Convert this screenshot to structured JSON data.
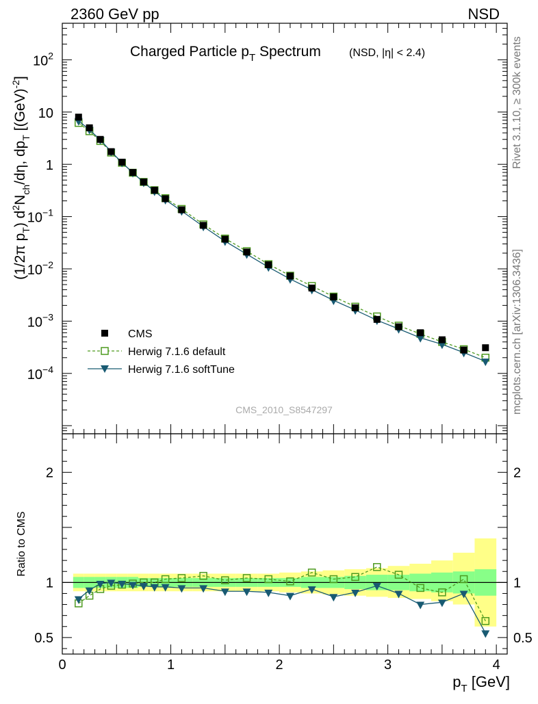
{
  "header": {
    "energy_label": "2360 GeV pp",
    "process_label": "NSD"
  },
  "side_labels": {
    "rivet": "Rivet 3.1.10, ≥ 300k events",
    "mcplots": "mcplots.cern.ch [arXiv:1306.3436]"
  },
  "analysis_id": "CMS_2010_S8547297",
  "colors": {
    "data": "#000000",
    "default": "#4d9a1f",
    "softtune": "#185a72",
    "band_yellow": "#ffff88",
    "band_green": "#88ff88"
  },
  "chart_data": [
    {
      "type": "line",
      "title_main": "Charged Particle p",
      "title_main_sub": "T",
      "title_main_end": " Spectrum",
      "title_extra": "(NSD, |η| < 2.4)",
      "ylabel": {
        "p1": "(1/2π p",
        "s1": "T",
        "p2": ") d",
        "s2": "2",
        "p3": "N",
        "s3": "ch",
        "p4": "/dη, dp",
        "s4": "T",
        "p5": " [(GeV)",
        "s5": "-2",
        "p6": "]"
      },
      "y_scale": "log",
      "ylim": [
        7e-06,
        500
      ],
      "xlim": [
        0,
        4.1
      ],
      "y_ticks": [
        {
          "v": 0.0001,
          "base": "10",
          "exp": "−4"
        },
        {
          "v": 0.001,
          "base": "10",
          "exp": "−3"
        },
        {
          "v": 0.01,
          "base": "10",
          "exp": "−2"
        },
        {
          "v": 0.1,
          "base": "10",
          "exp": "−1"
        },
        {
          "v": 1,
          "base": "1",
          "exp": ""
        },
        {
          "v": 10,
          "base": "10",
          "exp": ""
        },
        {
          "v": 100,
          "base": "10",
          "exp": "2"
        }
      ],
      "legend_position": "middle-left",
      "x": [
        0.15,
        0.25,
        0.35,
        0.45,
        0.55,
        0.65,
        0.75,
        0.85,
        0.95,
        1.1,
        1.3,
        1.5,
        1.7,
        1.9,
        2.1,
        2.3,
        2.5,
        2.7,
        2.9,
        3.1,
        3.3,
        3.5,
        3.7,
        3.9
      ],
      "series": [
        {
          "name": "CMS",
          "key": "data",
          "marker": "square",
          "values": [
            8.0,
            5.0,
            3.0,
            1.75,
            1.1,
            0.7,
            0.46,
            0.32,
            0.22,
            0.135,
            0.068,
            0.037,
            0.021,
            0.012,
            0.0073,
            0.0043,
            0.0029,
            0.0018,
            0.00108,
            0.00078,
            0.0006,
            0.00044,
            0.00028,
            0.00031
          ]
        },
        {
          "name": "Herwig 7.1.6 default",
          "key": "default",
          "marker": "open-square",
          "dashed": true,
          "values": [
            6.2,
            4.3,
            2.8,
            1.68,
            1.07,
            0.69,
            0.46,
            0.32,
            0.225,
            0.14,
            0.071,
            0.038,
            0.0218,
            0.0123,
            0.0074,
            0.0047,
            0.00295,
            0.00189,
            0.00123,
            0.00082,
            0.00057,
            0.0004,
            0.00029,
            0.0002
          ]
        },
        {
          "name": "Herwig 7.1.6 softTune",
          "key": "softtune",
          "marker": "triangle-down",
          "values": [
            6.8,
            4.6,
            2.95,
            1.75,
            1.08,
            0.69,
            0.45,
            0.305,
            0.21,
            0.128,
            0.0645,
            0.0338,
            0.0191,
            0.0108,
            0.0064,
            0.004,
            0.0025,
            0.00163,
            0.00104,
            0.00071,
            0.00048,
            0.00036,
            0.00025,
            0.00017
          ]
        }
      ]
    },
    {
      "type": "line",
      "ylabel": "Ratio to CMS",
      "xlabel_main": "p",
      "xlabel_sub": "T",
      "xlabel_unit": " [GeV]",
      "xlim": [
        0,
        4.1
      ],
      "ylim": [
        0.35,
        2.35
      ],
      "x_ticks": [
        0,
        1,
        2,
        3,
        4
      ],
      "y_ticks": [
        0.5,
        1,
        2
      ],
      "x": [
        0.15,
        0.25,
        0.35,
        0.45,
        0.55,
        0.65,
        0.75,
        0.85,
        0.95,
        1.1,
        1.3,
        1.5,
        1.7,
        1.9,
        2.1,
        2.3,
        2.5,
        2.7,
        2.9,
        3.1,
        3.3,
        3.5,
        3.7,
        3.9
      ],
      "uncertainty_band": {
        "edges": [
          0.1,
          0.2,
          0.3,
          0.4,
          0.5,
          0.6,
          0.7,
          0.8,
          0.9,
          1.0,
          1.2,
          1.4,
          1.6,
          1.8,
          2.0,
          2.2,
          2.4,
          2.6,
          2.8,
          3.0,
          3.2,
          3.4,
          3.6,
          3.8,
          4.0
        ],
        "stat_low": [
          0.95,
          0.95,
          0.95,
          0.95,
          0.95,
          0.95,
          0.96,
          0.96,
          0.96,
          0.96,
          0.96,
          0.96,
          0.96,
          0.96,
          0.96,
          0.95,
          0.95,
          0.94,
          0.93,
          0.93,
          0.92,
          0.91,
          0.9,
          0.88
        ],
        "stat_high": [
          1.05,
          1.05,
          1.05,
          1.05,
          1.05,
          1.05,
          1.04,
          1.04,
          1.04,
          1.04,
          1.04,
          1.04,
          1.04,
          1.04,
          1.04,
          1.05,
          1.05,
          1.06,
          1.07,
          1.07,
          1.08,
          1.09,
          1.1,
          1.12
        ],
        "tot_low": [
          0.92,
          0.92,
          0.92,
          0.92,
          0.92,
          0.92,
          0.92,
          0.92,
          0.92,
          0.92,
          0.92,
          0.92,
          0.92,
          0.92,
          0.91,
          0.9,
          0.89,
          0.88,
          0.87,
          0.86,
          0.85,
          0.83,
          0.8,
          0.6
        ],
        "tot_high": [
          1.08,
          1.08,
          1.08,
          1.08,
          1.08,
          1.08,
          1.08,
          1.08,
          1.08,
          1.08,
          1.08,
          1.08,
          1.08,
          1.08,
          1.09,
          1.1,
          1.11,
          1.12,
          1.13,
          1.15,
          1.17,
          1.2,
          1.27,
          1.4
        ]
      },
      "series": [
        {
          "name": "Herwig 7.1.6 default",
          "key": "default",
          "marker": "open-square",
          "dashed": true,
          "values": [
            0.81,
            0.88,
            0.94,
            0.97,
            0.98,
            0.99,
            1.0,
            1.0,
            1.03,
            1.04,
            1.06,
            1.02,
            1.04,
            1.03,
            1.01,
            1.09,
            1.03,
            1.05,
            1.14,
            1.07,
            0.95,
            0.91,
            1.03,
            0.65
          ]
        },
        {
          "name": "Herwig 7.1.6 softTune",
          "key": "softtune",
          "marker": "triangle-down",
          "values": [
            0.85,
            0.93,
            0.99,
            1.0,
            0.99,
            0.98,
            0.97,
            0.96,
            0.96,
            0.95,
            0.95,
            0.92,
            0.92,
            0.91,
            0.88,
            0.94,
            0.87,
            0.91,
            0.97,
            0.9,
            0.8,
            0.82,
            0.9,
            0.54
          ]
        }
      ]
    }
  ]
}
